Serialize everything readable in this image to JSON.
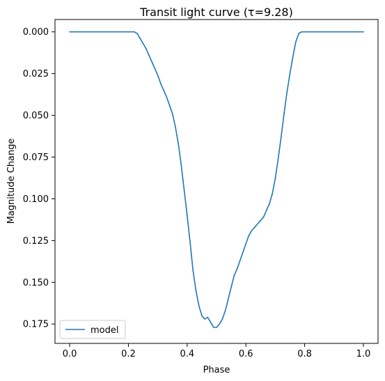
{
  "chart_data": {
    "type": "line",
    "title": "Transit light curve (τ=9.28)",
    "xlabel": "Phase",
    "ylabel": "Magnitude Change",
    "xlim": [
      -0.05,
      1.05
    ],
    "ylim": [
      0.1866,
      -0.0074
    ],
    "y_inverted": true,
    "grid": false,
    "legend_position": "lower left",
    "x_ticks": [
      0.0,
      0.2,
      0.4,
      0.6,
      0.8,
      1.0
    ],
    "x_tick_labels": [
      "0.0",
      "0.2",
      "0.4",
      "0.6",
      "0.8",
      "1.0"
    ],
    "y_ticks": [
      0.0,
      0.025,
      0.05,
      0.075,
      0.1,
      0.125,
      0.15,
      0.175
    ],
    "y_tick_labels": [
      "0.000",
      "0.025",
      "0.050",
      "0.075",
      "0.100",
      "0.125",
      "0.150",
      "0.175"
    ],
    "series": [
      {
        "name": "model",
        "color": "#1f77b4",
        "x": [
          0.0,
          0.05,
          0.1,
          0.15,
          0.2,
          0.22,
          0.23,
          0.24,
          0.25,
          0.26,
          0.27,
          0.28,
          0.29,
          0.3,
          0.31,
          0.32,
          0.33,
          0.34,
          0.35,
          0.36,
          0.37,
          0.38,
          0.39,
          0.4,
          0.41,
          0.42,
          0.43,
          0.44,
          0.45,
          0.46,
          0.47,
          0.48,
          0.49,
          0.5,
          0.51,
          0.52,
          0.53,
          0.54,
          0.55,
          0.56,
          0.57,
          0.58,
          0.59,
          0.6,
          0.61,
          0.62,
          0.63,
          0.64,
          0.65,
          0.66,
          0.67,
          0.68,
          0.69,
          0.7,
          0.71,
          0.72,
          0.73,
          0.74,
          0.75,
          0.76,
          0.77,
          0.78,
          0.79,
          0.8,
          0.85,
          0.9,
          0.95,
          1.0
        ],
        "y": [
          0.0,
          0.0,
          0.0,
          0.0,
          0.0,
          0.0,
          0.001,
          0.004,
          0.007,
          0.01,
          0.014,
          0.018,
          0.022,
          0.026,
          0.031,
          0.035,
          0.039,
          0.044,
          0.049,
          0.057,
          0.067,
          0.08,
          0.095,
          0.11,
          0.126,
          0.143,
          0.155,
          0.164,
          0.17,
          0.172,
          0.171,
          0.174,
          0.177,
          0.177,
          0.175,
          0.172,
          0.167,
          0.16,
          0.153,
          0.146,
          0.142,
          0.137,
          0.132,
          0.127,
          0.122,
          0.119,
          0.117,
          0.115,
          0.113,
          0.111,
          0.107,
          0.103,
          0.097,
          0.088,
          0.076,
          0.063,
          0.049,
          0.036,
          0.025,
          0.015,
          0.006,
          0.001,
          0.0,
          0.0,
          0.0,
          0.0,
          0.0,
          0.0
        ]
      }
    ]
  }
}
